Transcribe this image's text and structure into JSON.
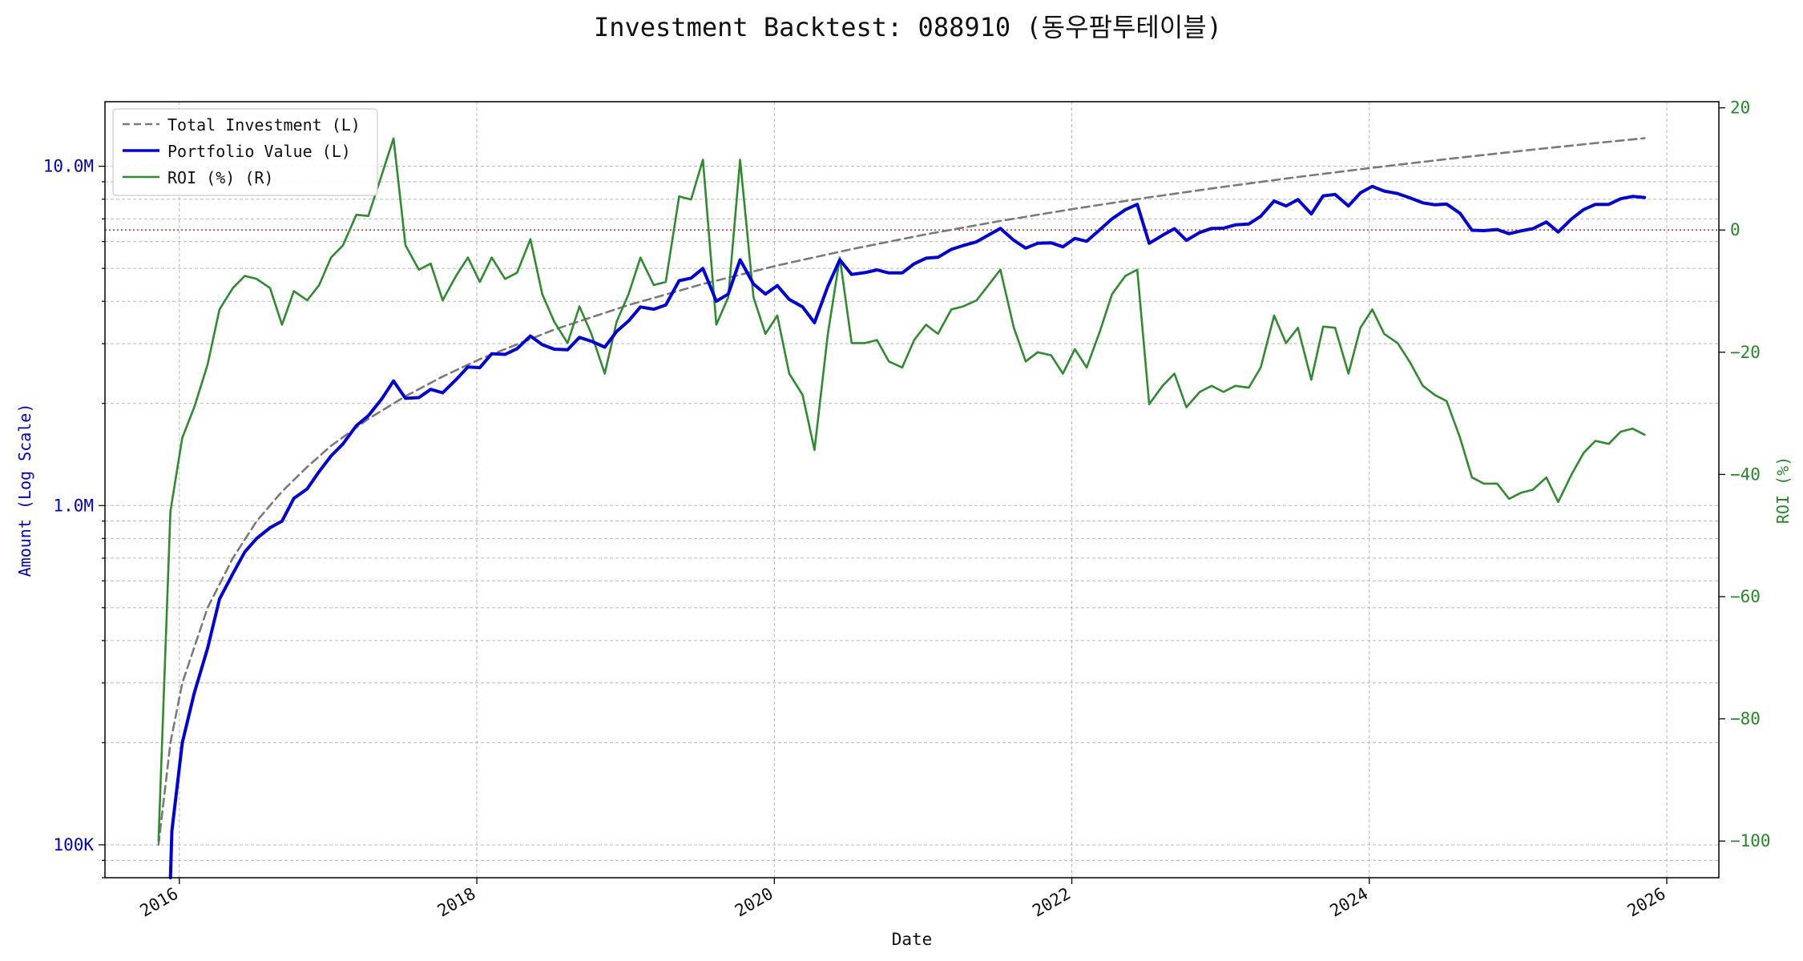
{
  "chart_data": {
    "type": "line",
    "title": "Investment Backtest: 088910 (동우팜투테이블)",
    "xlabel": "Date",
    "ylabel_left": "Amount (Log Scale)",
    "ylabel_right": "ROI (%)",
    "x_ticks": [
      "2016",
      "2018",
      "2020",
      "2022",
      "2024",
      "2026"
    ],
    "left_axis": {
      "scale": "log",
      "ylim": [
        80000,
        15500000
      ],
      "tick_values": [
        100000,
        1000000,
        10000000
      ],
      "tick_labels": [
        "100K",
        "1.0M",
        "10.0M"
      ],
      "color": "#0000cc"
    },
    "right_axis": {
      "scale": "linear",
      "ylim": [
        -106,
        21
      ],
      "tick_values": [
        -100,
        -80,
        -60,
        -40,
        -20,
        0,
        20
      ],
      "tick_labels": [
        "−100",
        "−80",
        "−60",
        "−40",
        "−20",
        "0",
        "20"
      ],
      "color": "#228b22"
    },
    "grid": true,
    "legend_position": "top-left",
    "reference_line": {
      "axis": "right",
      "value": 0,
      "color": "#e03030",
      "style": "dotted"
    },
    "series": [
      {
        "name": "Total Investment (L)",
        "axis": "left",
        "color": "#7a7a7a",
        "style": "dashed",
        "x": [
          2015.86,
          2015.94,
          2016.02,
          2016.19,
          2016.36,
          2016.52,
          2016.69,
          2016.86,
          2017.02,
          2017.27,
          2017.52,
          2017.77,
          2018.02,
          2018.52,
          2019.02,
          2019.52,
          2020.02,
          2020.52,
          2021.02,
          2021.52,
          2022.02,
          2022.52,
          2023.02,
          2023.52,
          2024.02,
          2024.52,
          2025.02,
          2025.52,
          2025.85
        ],
        "y": [
          100000,
          200000,
          300000,
          500000,
          700000,
          900000,
          1100000,
          1300000,
          1500000,
          1800000,
          2100000,
          2400000,
          2700000,
          3300000,
          3900000,
          4500000,
          5100000,
          5700000,
          6300000,
          6900000,
          7500000,
          8100000,
          8700000,
          9300000,
          9900000,
          10500000,
          11100000,
          11700000,
          12100000
        ]
      },
      {
        "name": "Portfolio Value (L)",
        "axis": "left",
        "color": "#0000dd",
        "style": "solid",
        "x": [
          2015.94,
          2015.95,
          2016.02,
          2016.1,
          2016.19,
          2016.27,
          2016.36,
          2016.44,
          2016.52,
          2016.61,
          2016.69,
          2016.77,
          2016.86,
          2016.94,
          2017.02,
          2017.1,
          2017.19,
          2017.27,
          2017.36,
          2017.44,
          2017.52,
          2017.61,
          2017.69,
          2017.77,
          2017.86,
          2017.94,
          2018.02,
          2018.1,
          2018.19,
          2018.27,
          2018.36,
          2018.44,
          2018.52,
          2018.61,
          2018.69,
          2018.77,
          2018.86,
          2018.94,
          2019.02,
          2019.1,
          2019.19,
          2019.27,
          2019.36,
          2019.44,
          2019.52,
          2019.61,
          2019.69,
          2019.77,
          2019.86,
          2019.94,
          2020.02,
          2020.1,
          2020.19,
          2020.27,
          2020.36,
          2020.44,
          2020.52,
          2020.61,
          2020.69,
          2020.77,
          2020.86,
          2020.94,
          2021.02,
          2021.1,
          2021.19,
          2021.27,
          2021.36,
          2021.44,
          2021.52,
          2021.61,
          2021.69,
          2021.77,
          2021.86,
          2021.94,
          2022.02,
          2022.1,
          2022.19,
          2022.27,
          2022.36,
          2022.44,
          2022.52,
          2022.61,
          2022.69,
          2022.77,
          2022.86,
          2022.94,
          2023.02,
          2023.1,
          2023.19,
          2023.27,
          2023.36,
          2023.44,
          2023.52,
          2023.61,
          2023.69,
          2023.77,
          2023.86,
          2023.94,
          2024.02,
          2024.1,
          2024.19,
          2024.27,
          2024.36,
          2024.44,
          2024.52,
          2024.61,
          2024.69,
          2024.77,
          2024.86,
          2024.94,
          2025.02,
          2025.1,
          2025.19,
          2025.27,
          2025.36,
          2025.44,
          2025.52,
          2025.61,
          2025.69,
          2025.77,
          2025.85
        ],
        "y": [
          70000,
          110000,
          200000,
          280000,
          380000,
          530000,
          630000,
          730000,
          800000,
          860000,
          900000,
          1050000,
          1120000,
          1260000,
          1400000,
          1520000,
          1720000,
          1840000,
          2060000,
          2330000,
          2070000,
          2080000,
          2200000,
          2150000,
          2350000,
          2560000,
          2550000,
          2800000,
          2790000,
          2900000,
          3160000,
          2980000,
          2890000,
          2880000,
          3130000,
          3050000,
          2930000,
          3260000,
          3500000,
          3850000,
          3790000,
          3900000,
          4600000,
          4680000,
          5000000,
          4000000,
          4200000,
          5300000,
          4500000,
          4200000,
          4450000,
          4050000,
          3850000,
          3460000,
          4430000,
          5300000,
          4800000,
          4860000,
          4950000,
          4850000,
          4850000,
          5160000,
          5360000,
          5390000,
          5690000,
          5840000,
          5990000,
          6270000,
          6560000,
          6050000,
          5740000,
          5930000,
          5950000,
          5790000,
          6130000,
          6010000,
          6510000,
          7000000,
          7450000,
          7720000,
          5930000,
          6260000,
          6550000,
          6050000,
          6380000,
          6560000,
          6570000,
          6720000,
          6760000,
          7120000,
          7900000,
          7640000,
          7980000,
          7240000,
          8180000,
          8260000,
          7640000,
          8350000,
          8720000,
          8450000,
          8310000,
          8080000,
          7800000,
          7700000,
          7740000,
          7270000,
          6480000,
          6460000,
          6510000,
          6330000,
          6450000,
          6550000,
          6850000,
          6400000,
          7000000,
          7450000,
          7720000,
          7720000,
          8020000,
          8150000,
          8090000
        ]
      },
      {
        "name": "ROI (%) (R)",
        "axis": "right",
        "color": "#2e8b2e",
        "style": "solid",
        "x": [
          2015.86,
          2015.94,
          2016.02,
          2016.1,
          2016.19,
          2016.27,
          2016.36,
          2016.44,
          2016.52,
          2016.61,
          2016.69,
          2016.77,
          2016.86,
          2016.94,
          2017.02,
          2017.1,
          2017.19,
          2017.27,
          2017.36,
          2017.44,
          2017.52,
          2017.61,
          2017.69,
          2017.77,
          2017.86,
          2017.94,
          2018.02,
          2018.1,
          2018.19,
          2018.27,
          2018.36,
          2018.44,
          2018.52,
          2018.61,
          2018.69,
          2018.77,
          2018.86,
          2018.94,
          2019.02,
          2019.1,
          2019.19,
          2019.27,
          2019.36,
          2019.44,
          2019.52,
          2019.61,
          2019.69,
          2019.77,
          2019.86,
          2019.94,
          2020.02,
          2020.1,
          2020.19,
          2020.27,
          2020.36,
          2020.44,
          2020.52,
          2020.61,
          2020.69,
          2020.77,
          2020.86,
          2020.94,
          2021.02,
          2021.1,
          2021.19,
          2021.27,
          2021.36,
          2021.44,
          2021.52,
          2021.61,
          2021.69,
          2021.77,
          2021.86,
          2021.94,
          2022.02,
          2022.1,
          2022.19,
          2022.27,
          2022.36,
          2022.44,
          2022.52,
          2022.61,
          2022.69,
          2022.77,
          2022.86,
          2022.94,
          2023.02,
          2023.1,
          2023.19,
          2023.27,
          2023.36,
          2023.44,
          2023.52,
          2023.61,
          2023.69,
          2023.77,
          2023.86,
          2023.94,
          2024.02,
          2024.1,
          2024.19,
          2024.27,
          2024.36,
          2024.44,
          2024.52,
          2024.61,
          2024.69,
          2024.77,
          2024.86,
          2024.94,
          2025.02,
          2025.1,
          2025.19,
          2025.27,
          2025.36,
          2025.44,
          2025.52,
          2025.61,
          2025.69,
          2025.77,
          2025.85
        ],
        "y": [
          -100,
          -46,
          -34,
          -29,
          -22,
          -13,
          -9.5,
          -7.5,
          -8,
          -9.5,
          -15.5,
          -10,
          -11.5,
          -9,
          -4.5,
          -2.5,
          2.5,
          2.3,
          9,
          15,
          -2.5,
          -6.5,
          -5.5,
          -11.5,
          -7.5,
          -4.5,
          -8.5,
          -4.5,
          -8,
          -7,
          -1.5,
          -10.5,
          -15,
          -18.5,
          -12.5,
          -17,
          -23.5,
          -15,
          -10.5,
          -4.5,
          -9,
          -8.5,
          5.5,
          5,
          11.5,
          -15.5,
          -11,
          11.5,
          -11,
          -17,
          -14,
          -23.5,
          -27,
          -36,
          -17,
          -4.5,
          -18.5,
          -18.5,
          -18,
          -21.5,
          -22.5,
          -18,
          -15.5,
          -17,
          -13,
          -12.5,
          -11.5,
          -9,
          -6.5,
          -16,
          -21.5,
          -20,
          -20.5,
          -23.5,
          -19.5,
          -22.5,
          -16.5,
          -10.5,
          -7.5,
          -6.5,
          -28.5,
          -25.5,
          -23.5,
          -29,
          -26.5,
          -25.5,
          -26.5,
          -25.5,
          -25.8,
          -22.5,
          -14,
          -18.5,
          -16,
          -24.5,
          -15.8,
          -16,
          -23.5,
          -16,
          -13,
          -17,
          -18.5,
          -21.5,
          -25.5,
          -27,
          -28,
          -34,
          -40.5,
          -41.5,
          -41.5,
          -44,
          -43,
          -42.5,
          -40.5,
          -44.5,
          -40,
          -36.5,
          -34.5,
          -35,
          -33,
          -32.5,
          -33.5
        ]
      }
    ]
  }
}
